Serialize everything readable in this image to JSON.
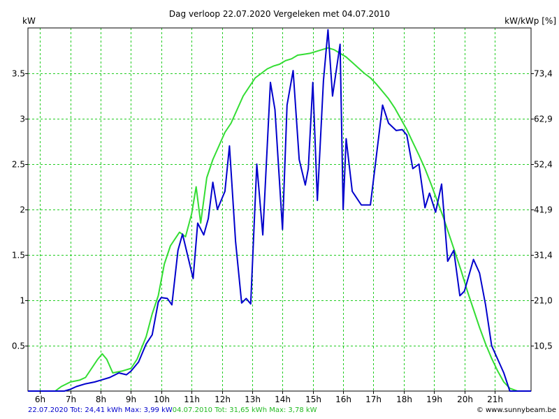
{
  "chart_data": {
    "type": "line",
    "title": "Dag  verloop 22.07.2020   Vergeleken met 04.07.2010",
    "ylabel_left": "kW",
    "ylabel_right": "kW/kWp [%]",
    "xlim": [
      5.6,
      22.2
    ],
    "ylim": [
      0,
      4.0
    ],
    "grid": true,
    "x_ticks": [
      {
        "x": 6,
        "label": "6h"
      },
      {
        "x": 7,
        "label": "7h"
      },
      {
        "x": 8,
        "label": "8h"
      },
      {
        "x": 9,
        "label": "9h"
      },
      {
        "x": 10,
        "label": "10h"
      },
      {
        "x": 11,
        "label": "11h"
      },
      {
        "x": 12,
        "label": "12h"
      },
      {
        "x": 13,
        "label": "13h"
      },
      {
        "x": 14,
        "label": "14h"
      },
      {
        "x": 15,
        "label": "15h"
      },
      {
        "x": 16,
        "label": "16h"
      },
      {
        "x": 17,
        "label": "17h"
      },
      {
        "x": 18,
        "label": "18h"
      },
      {
        "x": 19,
        "label": "19h"
      },
      {
        "x": 20,
        "label": "20h"
      },
      {
        "x": 21,
        "label": "21h"
      }
    ],
    "y_ticks_left": [
      {
        "y": 0.5,
        "label": "0.5"
      },
      {
        "y": 1.0,
        "label": "1"
      },
      {
        "y": 1.5,
        "label": "1.5"
      },
      {
        "y": 2.0,
        "label": "2"
      },
      {
        "y": 2.5,
        "label": "2.5"
      },
      {
        "y": 3.0,
        "label": "3"
      },
      {
        "y": 3.5,
        "label": "3.5"
      }
    ],
    "y_ticks_right": [
      {
        "y": 0.5,
        "label": "10,5"
      },
      {
        "y": 1.0,
        "label": "21,0"
      },
      {
        "y": 1.5,
        "label": "31,4"
      },
      {
        "y": 2.0,
        "label": "41,9"
      },
      {
        "y": 2.5,
        "label": "52,4"
      },
      {
        "y": 3.0,
        "label": "62,9"
      },
      {
        "y": 3.5,
        "label": "73,4"
      }
    ],
    "series": [
      {
        "name": "04.07.2010",
        "color": "#33dd33",
        "x": [
          5.6,
          6.5,
          6.7,
          7.0,
          7.3,
          7.5,
          7.7,
          7.9,
          8.05,
          8.2,
          8.4,
          8.7,
          9.0,
          9.2,
          9.5,
          9.7,
          9.9,
          10.1,
          10.3,
          10.6,
          10.8,
          11.0,
          11.15,
          11.3,
          11.5,
          11.7,
          11.9,
          12.1,
          12.3,
          12.5,
          12.7,
          12.9,
          13.1,
          13.3,
          13.5,
          13.7,
          13.9,
          14.1,
          14.3,
          14.5,
          14.7,
          14.9,
          15.1,
          15.3,
          15.5,
          15.7,
          15.9,
          16.1,
          16.3,
          16.5,
          16.7,
          16.9,
          17.1,
          17.3,
          17.5,
          17.7,
          17.9,
          18.1,
          18.3,
          18.5,
          18.7,
          18.9,
          19.1,
          19.3,
          19.5,
          19.7,
          19.9,
          20.1,
          20.3,
          20.5,
          20.7,
          20.9,
          21.1,
          21.3,
          21.5,
          21.75,
          22.2
        ],
        "values": [
          0.0,
          0.0,
          0.05,
          0.1,
          0.12,
          0.15,
          0.25,
          0.35,
          0.41,
          0.35,
          0.2,
          0.22,
          0.25,
          0.35,
          0.6,
          0.85,
          1.05,
          1.4,
          1.6,
          1.75,
          1.7,
          1.95,
          2.25,
          1.85,
          2.35,
          2.55,
          2.7,
          2.85,
          2.95,
          3.1,
          3.25,
          3.35,
          3.45,
          3.5,
          3.55,
          3.58,
          3.6,
          3.64,
          3.66,
          3.7,
          3.71,
          3.72,
          3.74,
          3.76,
          3.78,
          3.76,
          3.72,
          3.68,
          3.62,
          3.56,
          3.5,
          3.45,
          3.38,
          3.3,
          3.22,
          3.12,
          3.0,
          2.88,
          2.74,
          2.6,
          2.45,
          2.28,
          2.1,
          1.92,
          1.72,
          1.52,
          1.32,
          1.1,
          0.9,
          0.7,
          0.52,
          0.36,
          0.22,
          0.1,
          0.03,
          0.0,
          0.0
        ]
      },
      {
        "name": "22.07.2020",
        "color": "#0000cc",
        "x": [
          5.6,
          6.8,
          7.0,
          7.2,
          7.5,
          7.8,
          8.0,
          8.3,
          8.6,
          8.85,
          9.0,
          9.25,
          9.5,
          9.7,
          9.9,
          10.0,
          10.2,
          10.35,
          10.55,
          10.7,
          10.85,
          11.05,
          11.2,
          11.4,
          11.55,
          11.7,
          11.85,
          12.1,
          12.25,
          12.45,
          12.65,
          12.8,
          12.95,
          13.15,
          13.35,
          13.6,
          13.75,
          14.0,
          14.15,
          14.35,
          14.55,
          14.75,
          14.85,
          15.0,
          15.15,
          15.35,
          15.5,
          15.65,
          15.9,
          16.0,
          16.1,
          16.3,
          16.6,
          16.9,
          17.1,
          17.3,
          17.5,
          17.75,
          17.95,
          18.1,
          18.3,
          18.5,
          18.7,
          18.85,
          19.05,
          19.25,
          19.45,
          19.65,
          19.85,
          20.0,
          20.3,
          20.5,
          20.7,
          20.9,
          21.1,
          21.3,
          21.5,
          22.2
        ],
        "values": [
          0.0,
          0.0,
          0.02,
          0.05,
          0.08,
          0.1,
          0.12,
          0.15,
          0.2,
          0.18,
          0.22,
          0.32,
          0.52,
          0.62,
          0.98,
          1.03,
          1.02,
          0.95,
          1.55,
          1.73,
          1.52,
          1.24,
          1.85,
          1.72,
          1.9,
          2.3,
          2.0,
          2.2,
          2.7,
          1.65,
          0.97,
          1.02,
          0.96,
          2.5,
          1.72,
          3.4,
          3.1,
          1.78,
          3.15,
          3.53,
          2.55,
          2.27,
          2.45,
          3.4,
          2.1,
          3.42,
          3.98,
          3.25,
          3.82,
          2.0,
          2.78,
          2.2,
          2.05,
          2.05,
          2.6,
          3.15,
          2.95,
          2.87,
          2.88,
          2.82,
          2.45,
          2.5,
          2.02,
          2.18,
          1.97,
          2.28,
          1.43,
          1.55,
          1.05,
          1.1,
          1.45,
          1.3,
          0.95,
          0.5,
          0.35,
          0.2,
          0.0,
          0.0
        ]
      }
    ]
  },
  "footer": {
    "left_blue": "22.07.2020 Tot: 24,41 kWh Max: 3,99 kW",
    "left_green": "04.07.2010 Tot: 31,65 kWh Max: 3,78 kW",
    "right": "© www.sunnybeam.be"
  }
}
